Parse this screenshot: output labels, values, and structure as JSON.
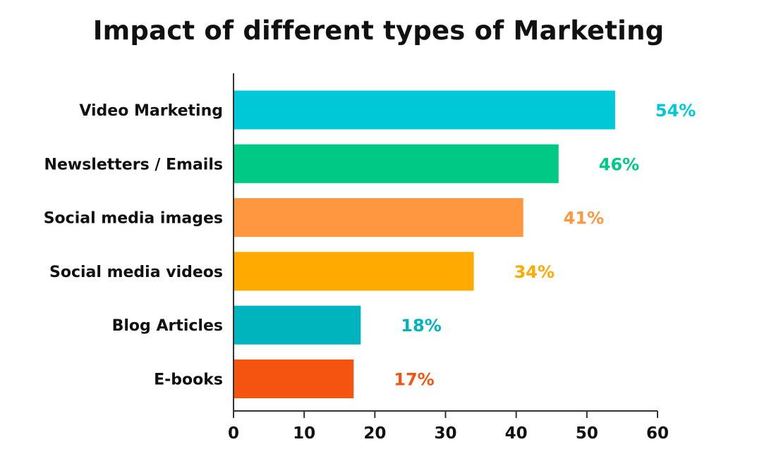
{
  "chart_data": {
    "type": "bar",
    "orientation": "horizontal",
    "title": "Impact of different types of Marketing",
    "categories": [
      "Video Marketing",
      "Newsletters / Emails",
      "Social media images",
      "Social media videos",
      "Blog Articles",
      "E-books"
    ],
    "values": [
      54,
      46,
      41,
      34,
      18,
      17
    ],
    "data_labels": [
      "54%",
      "46%",
      "41%",
      "34%",
      "18%",
      "17%"
    ],
    "colors": [
      "#00C8D7",
      "#00C986",
      "#FF9640",
      "#FFAA00",
      "#00B4BE",
      "#F4540F"
    ],
    "label_colors": [
      "#00C8D7",
      "#00C986",
      "#FF9640",
      "#FFAA00",
      "#00B4BE",
      "#F4540F"
    ],
    "xlim": [
      0,
      60
    ],
    "xticks": [
      0,
      10,
      20,
      30,
      40,
      50,
      60
    ],
    "xlabel": "",
    "ylabel": "",
    "grid": false,
    "legend": "none"
  }
}
